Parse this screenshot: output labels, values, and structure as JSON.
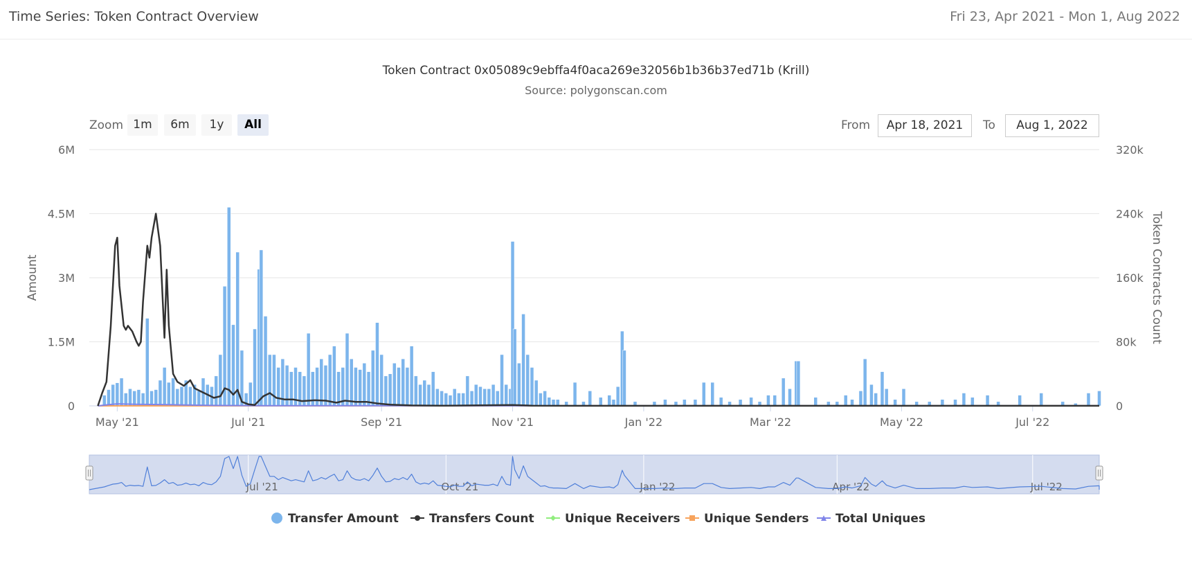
{
  "header": {
    "title": "Time Series: Token Contract Overview",
    "date_range": "Fri 23, Apr 2021 - Mon 1, Aug 2022"
  },
  "zoom": {
    "label": "Zoom",
    "buttons": [
      "1m",
      "6m",
      "1y",
      "All"
    ],
    "active": "All"
  },
  "range": {
    "from_label": "From",
    "from_value": "Apr 18, 2021",
    "to_label": "To",
    "to_value": "Aug 1, 2022"
  },
  "colors": {
    "transfer_amount": "#7cb5ec",
    "transfers_count": "#333333",
    "unique_receivers": "#90ed7d",
    "unique_senders": "#f7a35c",
    "total_uniques": "#8085e9",
    "navigator_fill": "#c5d0ea",
    "navigator_line": "#4f7fd9"
  },
  "chart_data": {
    "type": "bar",
    "title": "Token Contract 0x05089c9ebffa4f0aca269e32056b1b36b37ed71b (Krill)",
    "subtitle": "Source: polygonscan.com",
    "ylabel": "Amount",
    "y2label": "Token Contracts Count",
    "ylim": [
      0,
      6000000
    ],
    "y2lim": [
      0,
      320000
    ],
    "x_range": [
      "2021-04-18",
      "2022-08-01"
    ],
    "y_ticks": [
      "0",
      "1.5M",
      "3M",
      "4.5M",
      "6M"
    ],
    "y2_ticks": [
      "0",
      "80k",
      "160k",
      "240k",
      "320k"
    ],
    "x_ticks": [
      {
        "label": "May '21",
        "date": "2021-05-01"
      },
      {
        "label": "Jul '21",
        "date": "2021-07-01"
      },
      {
        "label": "Sep '21",
        "date": "2021-09-01"
      },
      {
        "label": "Nov '21",
        "date": "2021-11-01"
      },
      {
        "label": "Jan '22",
        "date": "2022-01-01"
      },
      {
        "label": "Mar '22",
        "date": "2022-03-01"
      },
      {
        "label": "May '22",
        "date": "2022-05-01"
      },
      {
        "label": "Jul '22",
        "date": "2022-07-01"
      }
    ],
    "navigator_ticks": [
      {
        "label": "Jul '21",
        "date": "2021-07-01"
      },
      {
        "label": "Oct '21",
        "date": "2021-10-01"
      },
      {
        "label": "Jan '22",
        "date": "2022-01-01"
      },
      {
        "label": "Apr '22",
        "date": "2022-04-01"
      },
      {
        "label": "Jul '22",
        "date": "2022-07-01"
      }
    ],
    "series": [
      {
        "name": "Transfer Amount",
        "type": "column",
        "points": [
          [
            "2021-04-25",
            250000
          ],
          [
            "2021-04-27",
            380000
          ],
          [
            "2021-04-29",
            500000
          ],
          [
            "2021-05-01",
            540000
          ],
          [
            "2021-05-03",
            650000
          ],
          [
            "2021-05-05",
            300000
          ],
          [
            "2021-05-07",
            400000
          ],
          [
            "2021-05-09",
            350000
          ],
          [
            "2021-05-11",
            380000
          ],
          [
            "2021-05-13",
            300000
          ],
          [
            "2021-05-15",
            2050000
          ],
          [
            "2021-05-17",
            350000
          ],
          [
            "2021-05-19",
            380000
          ],
          [
            "2021-05-21",
            600000
          ],
          [
            "2021-05-23",
            900000
          ],
          [
            "2021-05-25",
            550000
          ],
          [
            "2021-05-27",
            650000
          ],
          [
            "2021-05-29",
            400000
          ],
          [
            "2021-05-31",
            450000
          ],
          [
            "2021-06-02",
            600000
          ],
          [
            "2021-06-04",
            450000
          ],
          [
            "2021-06-06",
            500000
          ],
          [
            "2021-06-08",
            350000
          ],
          [
            "2021-06-10",
            650000
          ],
          [
            "2021-06-12",
            500000
          ],
          [
            "2021-06-14",
            450000
          ],
          [
            "2021-06-16",
            700000
          ],
          [
            "2021-06-18",
            1200000
          ],
          [
            "2021-06-20",
            2800000
          ],
          [
            "2021-06-22",
            4650000
          ],
          [
            "2021-06-24",
            1900000
          ],
          [
            "2021-06-26",
            3600000
          ],
          [
            "2021-06-28",
            1300000
          ],
          [
            "2021-06-30",
            300000
          ],
          [
            "2021-07-02",
            550000
          ],
          [
            "2021-07-04",
            1800000
          ],
          [
            "2021-07-06",
            3200000
          ],
          [
            "2021-07-07",
            3650000
          ],
          [
            "2021-07-09",
            2100000
          ],
          [
            "2021-07-11",
            1200000
          ],
          [
            "2021-07-13",
            1200000
          ],
          [
            "2021-07-15",
            900000
          ],
          [
            "2021-07-17",
            1100000
          ],
          [
            "2021-07-19",
            950000
          ],
          [
            "2021-07-21",
            800000
          ],
          [
            "2021-07-23",
            900000
          ],
          [
            "2021-07-25",
            800000
          ],
          [
            "2021-07-27",
            700000
          ],
          [
            "2021-07-29",
            1700000
          ],
          [
            "2021-07-31",
            800000
          ],
          [
            "2021-08-02",
            900000
          ],
          [
            "2021-08-04",
            1100000
          ],
          [
            "2021-08-06",
            950000
          ],
          [
            "2021-08-08",
            1200000
          ],
          [
            "2021-08-10",
            1400000
          ],
          [
            "2021-08-12",
            800000
          ],
          [
            "2021-08-14",
            900000
          ],
          [
            "2021-08-16",
            1700000
          ],
          [
            "2021-08-18",
            1100000
          ],
          [
            "2021-08-20",
            900000
          ],
          [
            "2021-08-22",
            850000
          ],
          [
            "2021-08-24",
            1000000
          ],
          [
            "2021-08-26",
            800000
          ],
          [
            "2021-08-28",
            1300000
          ],
          [
            "2021-08-30",
            1950000
          ],
          [
            "2021-09-01",
            1200000
          ],
          [
            "2021-09-03",
            700000
          ],
          [
            "2021-09-05",
            750000
          ],
          [
            "2021-09-07",
            1000000
          ],
          [
            "2021-09-09",
            900000
          ],
          [
            "2021-09-11",
            1100000
          ],
          [
            "2021-09-13",
            900000
          ],
          [
            "2021-09-15",
            1400000
          ],
          [
            "2021-09-17",
            700000
          ],
          [
            "2021-09-19",
            500000
          ],
          [
            "2021-09-21",
            600000
          ],
          [
            "2021-09-23",
            500000
          ],
          [
            "2021-09-25",
            800000
          ],
          [
            "2021-09-27",
            400000
          ],
          [
            "2021-09-29",
            350000
          ],
          [
            "2021-10-01",
            300000
          ],
          [
            "2021-10-03",
            250000
          ],
          [
            "2021-10-05",
            400000
          ],
          [
            "2021-10-07",
            300000
          ],
          [
            "2021-10-09",
            300000
          ],
          [
            "2021-10-11",
            700000
          ],
          [
            "2021-10-13",
            350000
          ],
          [
            "2021-10-15",
            500000
          ],
          [
            "2021-10-17",
            450000
          ],
          [
            "2021-10-19",
            400000
          ],
          [
            "2021-10-21",
            400000
          ],
          [
            "2021-10-23",
            500000
          ],
          [
            "2021-10-25",
            350000
          ],
          [
            "2021-10-27",
            1200000
          ],
          [
            "2021-10-29",
            500000
          ],
          [
            "2021-10-31",
            400000
          ],
          [
            "2021-11-01",
            3850000
          ],
          [
            "2021-11-02",
            1800000
          ],
          [
            "2021-11-04",
            1000000
          ],
          [
            "2021-11-06",
            2150000
          ],
          [
            "2021-11-08",
            1200000
          ],
          [
            "2021-11-10",
            900000
          ],
          [
            "2021-11-12",
            600000
          ],
          [
            "2021-11-14",
            300000
          ],
          [
            "2021-11-16",
            350000
          ],
          [
            "2021-11-18",
            200000
          ],
          [
            "2021-11-20",
            150000
          ],
          [
            "2021-11-22",
            150000
          ],
          [
            "2021-11-26",
            100000
          ],
          [
            "2021-11-30",
            550000
          ],
          [
            "2021-12-04",
            100000
          ],
          [
            "2021-12-07",
            350000
          ],
          [
            "2021-12-12",
            200000
          ],
          [
            "2021-12-16",
            250000
          ],
          [
            "2021-12-18",
            150000
          ],
          [
            "2021-12-20",
            450000
          ],
          [
            "2021-12-22",
            1750000
          ],
          [
            "2021-12-23",
            1300000
          ],
          [
            "2021-12-28",
            100000
          ],
          [
            "2022-01-06",
            100000
          ],
          [
            "2022-01-11",
            150000
          ],
          [
            "2022-01-16",
            100000
          ],
          [
            "2022-01-20",
            150000
          ],
          [
            "2022-01-25",
            150000
          ],
          [
            "2022-01-29",
            550000
          ],
          [
            "2022-02-02",
            550000
          ],
          [
            "2022-02-06",
            200000
          ],
          [
            "2022-02-10",
            100000
          ],
          [
            "2022-02-15",
            150000
          ],
          [
            "2022-02-20",
            200000
          ],
          [
            "2022-02-24",
            100000
          ],
          [
            "2022-02-28",
            250000
          ],
          [
            "2022-03-03",
            250000
          ],
          [
            "2022-03-07",
            650000
          ],
          [
            "2022-03-10",
            400000
          ],
          [
            "2022-03-13",
            1050000
          ],
          [
            "2022-03-14",
            1050000
          ],
          [
            "2022-03-22",
            200000
          ],
          [
            "2022-03-28",
            100000
          ],
          [
            "2022-04-01",
            100000
          ],
          [
            "2022-04-05",
            250000
          ],
          [
            "2022-04-08",
            150000
          ],
          [
            "2022-04-12",
            350000
          ],
          [
            "2022-04-14",
            1100000
          ],
          [
            "2022-04-17",
            500000
          ],
          [
            "2022-04-19",
            300000
          ],
          [
            "2022-04-22",
            800000
          ],
          [
            "2022-04-24",
            400000
          ],
          [
            "2022-04-28",
            150000
          ],
          [
            "2022-05-02",
            400000
          ],
          [
            "2022-05-08",
            100000
          ],
          [
            "2022-05-14",
            100000
          ],
          [
            "2022-05-20",
            150000
          ],
          [
            "2022-05-26",
            150000
          ],
          [
            "2022-05-30",
            300000
          ],
          [
            "2022-06-03",
            200000
          ],
          [
            "2022-06-10",
            250000
          ],
          [
            "2022-06-15",
            100000
          ],
          [
            "2022-06-25",
            250000
          ],
          [
            "2022-07-05",
            300000
          ],
          [
            "2022-07-15",
            100000
          ],
          [
            "2022-07-21",
            60000
          ],
          [
            "2022-07-27",
            300000
          ],
          [
            "2022-08-01",
            350000
          ]
        ]
      },
      {
        "name": "Transfers Count",
        "type": "line",
        "points": [
          [
            "2021-04-22",
            0
          ],
          [
            "2021-04-24",
            16000
          ],
          [
            "2021-04-26",
            30000
          ],
          [
            "2021-04-28",
            100000
          ],
          [
            "2021-04-30",
            200000
          ],
          [
            "2021-05-01",
            210000
          ],
          [
            "2021-05-02",
            150000
          ],
          [
            "2021-05-04",
            100000
          ],
          [
            "2021-05-05",
            95000
          ],
          [
            "2021-05-06",
            100000
          ],
          [
            "2021-05-08",
            93000
          ],
          [
            "2021-05-10",
            80000
          ],
          [
            "2021-05-11",
            75000
          ],
          [
            "2021-05-12",
            80000
          ],
          [
            "2021-05-13",
            130000
          ],
          [
            "2021-05-15",
            200000
          ],
          [
            "2021-05-16",
            185000
          ],
          [
            "2021-05-17",
            210000
          ],
          [
            "2021-05-19",
            240000
          ],
          [
            "2021-05-21",
            200000
          ],
          [
            "2021-05-23",
            85000
          ],
          [
            "2021-05-24",
            170000
          ],
          [
            "2021-05-25",
            100000
          ],
          [
            "2021-05-27",
            40000
          ],
          [
            "2021-05-29",
            30000
          ],
          [
            "2021-06-01",
            25000
          ],
          [
            "2021-06-04",
            32000
          ],
          [
            "2021-06-06",
            22000
          ],
          [
            "2021-06-09",
            18000
          ],
          [
            "2021-06-12",
            14000
          ],
          [
            "2021-06-15",
            10000
          ],
          [
            "2021-06-18",
            12000
          ],
          [
            "2021-06-20",
            22000
          ],
          [
            "2021-06-22",
            20000
          ],
          [
            "2021-06-24",
            14000
          ],
          [
            "2021-06-26",
            20000
          ],
          [
            "2021-06-28",
            5000
          ],
          [
            "2021-07-01",
            2000
          ],
          [
            "2021-07-04",
            1000
          ],
          [
            "2021-07-08",
            12000
          ],
          [
            "2021-07-11",
            16000
          ],
          [
            "2021-07-14",
            10000
          ],
          [
            "2021-07-18",
            8000
          ],
          [
            "2021-07-22",
            8000
          ],
          [
            "2021-07-26",
            6000
          ],
          [
            "2021-08-01",
            7000
          ],
          [
            "2021-08-06",
            6500
          ],
          [
            "2021-08-11",
            4000
          ],
          [
            "2021-08-15",
            6500
          ],
          [
            "2021-08-20",
            5000
          ],
          [
            "2021-08-25",
            5000
          ],
          [
            "2021-08-30",
            3000
          ],
          [
            "2021-09-05",
            1500
          ],
          [
            "2021-09-15",
            500
          ],
          [
            "2021-10-01",
            200
          ],
          [
            "2021-11-01",
            1000
          ],
          [
            "2021-11-10",
            300
          ],
          [
            "2021-12-01",
            100
          ],
          [
            "2022-08-01",
            100
          ]
        ]
      },
      {
        "name": "Unique Receivers",
        "type": "line",
        "points": [
          [
            "2021-04-22",
            0
          ],
          [
            "2022-08-01",
            0
          ]
        ]
      },
      {
        "name": "Unique Senders",
        "type": "line",
        "points": [
          [
            "2021-04-22",
            0
          ],
          [
            "2022-08-01",
            0
          ]
        ]
      },
      {
        "name": "Total Uniques",
        "type": "line",
        "points": [
          [
            "2021-04-22",
            0
          ],
          [
            "2021-04-27",
            1500
          ],
          [
            "2021-05-01",
            2500
          ],
          [
            "2021-05-10",
            2000
          ],
          [
            "2021-05-25",
            1500
          ],
          [
            "2021-06-15",
            500
          ],
          [
            "2021-07-15",
            200
          ],
          [
            "2022-08-01",
            100
          ]
        ]
      }
    ],
    "legend": [
      "Transfer Amount",
      "Transfers Count",
      "Unique Receivers",
      "Unique Senders",
      "Total Uniques"
    ]
  }
}
